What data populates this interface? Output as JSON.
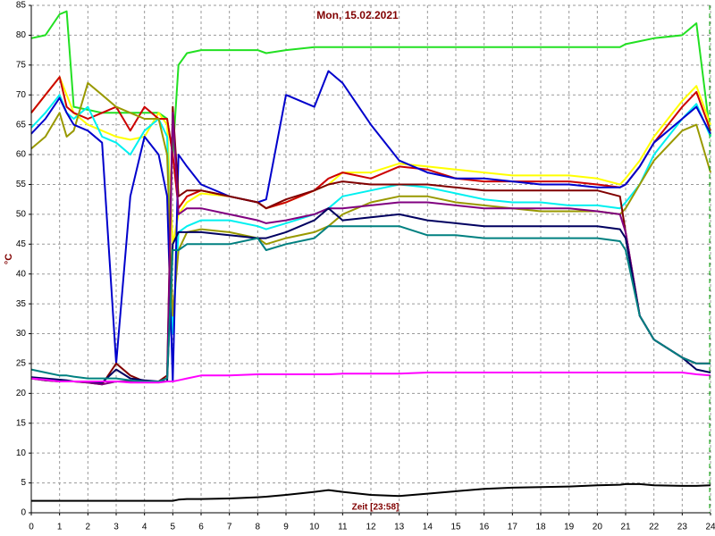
{
  "chart_data": {
    "type": "line",
    "title": "Mon, 15.02.2021",
    "y_label": "°C",
    "x_label": "Zeit [23:58]",
    "xlim": [
      0,
      24
    ],
    "xticks": [
      0,
      1,
      2,
      3,
      4,
      5,
      6,
      7,
      8,
      9,
      10,
      11,
      12,
      13,
      14,
      15,
      16,
      17,
      18,
      19,
      20,
      21,
      22,
      23,
      24
    ],
    "ylim": [
      0,
      85
    ],
    "yticks": [
      0,
      5,
      10,
      15,
      20,
      25,
      30,
      35,
      40,
      45,
      50,
      55,
      60,
      65,
      70,
      75,
      80,
      85
    ],
    "grid": true,
    "x": [
      0,
      0.5,
      1,
      1.25,
      1.5,
      2,
      2.5,
      3,
      3.5,
      4,
      4.5,
      4.8,
      5,
      5.2,
      5.5,
      6,
      7,
      8,
      8.3,
      9,
      10,
      10.5,
      11,
      12,
      13,
      14,
      15,
      16,
      17,
      18,
      19,
      20,
      20.8,
      21,
      21.5,
      22,
      23,
      23.5,
      24
    ],
    "series": [
      {
        "color": "#22e022",
        "values": [
          79.5,
          80,
          83.5,
          84,
          68,
          67.5,
          67,
          67,
          67,
          67,
          67,
          66,
          60,
          75,
          77,
          77.5,
          77.5,
          77.5,
          77,
          77.5,
          78,
          78,
          78,
          78,
          78,
          78,
          78,
          78,
          78,
          78,
          78,
          78,
          78,
          78.5,
          79,
          79.5,
          80,
          82,
          63
        ]
      },
      {
        "color": "#ffff00",
        "values": [
          67,
          70,
          73,
          70,
          67,
          65,
          64,
          63,
          62.5,
          63,
          67,
          65,
          45,
          50,
          52,
          53.5,
          53,
          52,
          51,
          52,
          54,
          55,
          57,
          57,
          58.5,
          58,
          57.5,
          57,
          56.5,
          56.5,
          56.5,
          56,
          55,
          56,
          59,
          63,
          69,
          71.5,
          65
        ]
      },
      {
        "color": "#cc0000",
        "values": [
          67,
          70,
          73,
          68,
          67,
          66,
          67,
          68,
          64,
          68,
          66,
          66,
          60,
          51,
          53,
          54,
          53,
          52,
          51,
          52,
          54,
          56,
          57,
          56,
          58,
          57.5,
          56,
          55.5,
          55.5,
          55.5,
          55.5,
          55,
          54.5,
          55,
          58,
          62,
          68,
          70.5,
          64
        ]
      },
      {
        "color": "#00f0f0",
        "values": [
          64.5,
          67,
          70,
          67,
          66,
          68,
          63,
          62,
          60,
          64,
          66,
          63,
          30,
          47,
          48,
          49,
          49,
          48,
          47.5,
          48.5,
          50,
          51,
          53,
          54,
          55,
          54.5,
          53.5,
          52.5,
          52,
          52,
          51.5,
          51.5,
          51,
          52,
          55,
          60,
          66,
          68.5,
          63
        ]
      },
      {
        "color": "#999900",
        "values": [
          61,
          63,
          67,
          63,
          64,
          72,
          70,
          68,
          67,
          66,
          66,
          60,
          33,
          44,
          47,
          47.5,
          47,
          46,
          45,
          46,
          47,
          48,
          50,
          52,
          53,
          53,
          52,
          51.5,
          51,
          50.5,
          50.5,
          50.5,
          50,
          51,
          55,
          59,
          64,
          65,
          57
        ]
      },
      {
        "color": "#0000cc",
        "values": [
          63.5,
          66,
          69.5,
          67,
          65,
          64,
          62,
          25,
          53,
          63,
          60,
          53,
          22,
          60,
          58,
          55,
          53,
          52,
          52.5,
          70,
          68,
          74,
          72,
          65,
          59,
          57,
          56,
          56,
          55.5,
          55,
          55,
          54.5,
          54.5,
          55,
          58,
          62,
          66,
          68,
          63.5
        ]
      },
      {
        "color": "#800000",
        "values": [
          22.5,
          22.2,
          22,
          22,
          22,
          21.8,
          21.5,
          25,
          23,
          22,
          22,
          23,
          68,
          53,
          54,
          54,
          53,
          52,
          51,
          52.5,
          54,
          55,
          55.5,
          55,
          55,
          55,
          54.5,
          54,
          54,
          54,
          54,
          54,
          53,
          47,
          33,
          29,
          26,
          25,
          25
        ]
      },
      {
        "color": "#800080",
        "values": [
          22.5,
          22.2,
          22,
          22,
          22,
          21.8,
          21.5,
          22,
          22,
          22,
          22,
          22,
          67,
          50,
          51,
          51,
          50,
          49,
          48.5,
          49,
          50,
          51,
          51,
          51.5,
          52,
          52,
          51.5,
          51,
          51,
          51,
          51,
          50.5,
          50,
          47,
          33,
          29,
          26,
          25,
          25
        ]
      },
      {
        "color": "#000060",
        "values": [
          22.7,
          22.5,
          22.3,
          22.2,
          22,
          22,
          21.8,
          24,
          22.5,
          22.2,
          22,
          22,
          45,
          47,
          47,
          47,
          46.5,
          46,
          46,
          47,
          49,
          51,
          49,
          49.5,
          50,
          49,
          48.5,
          48,
          48,
          48,
          48,
          48,
          47.5,
          46,
          33,
          29,
          26,
          24,
          23.5
        ]
      },
      {
        "color": "#008080",
        "values": [
          24,
          23.5,
          23,
          23,
          22.8,
          22.5,
          22.5,
          22.5,
          22.2,
          22,
          22,
          22.5,
          44,
          44,
          45,
          45,
          45,
          46,
          44,
          45,
          46,
          48,
          48,
          48,
          48,
          46.5,
          46.5,
          46,
          46,
          46,
          46,
          46,
          45.5,
          44,
          33,
          29,
          26,
          25,
          25
        ]
      },
      {
        "color": "#ff00ff",
        "values": [
          22.5,
          22.3,
          22,
          22,
          22,
          22,
          22,
          22,
          21.8,
          21.8,
          21.8,
          22,
          22,
          22.2,
          22.5,
          23,
          23,
          23.2,
          23.2,
          23.2,
          23.2,
          23.2,
          23.3,
          23.3,
          23.3,
          23.5,
          23.5,
          23.5,
          23.5,
          23.5,
          23.5,
          23.5,
          23.5,
          23.5,
          23.5,
          23.5,
          23.5,
          23.2,
          23
        ]
      },
      {
        "color": "#000000",
        "values": [
          2,
          2,
          2,
          2,
          2,
          2,
          2,
          2,
          2,
          2,
          2,
          2,
          2,
          2.2,
          2.3,
          2.3,
          2.4,
          2.6,
          2.7,
          3,
          3.5,
          3.8,
          3.5,
          3,
          2.8,
          3.2,
          3.6,
          4,
          4.2,
          4.3,
          4.4,
          4.6,
          4.7,
          4.8,
          4.8,
          4.6,
          4.5,
          4.5,
          4.6
        ]
      }
    ]
  }
}
